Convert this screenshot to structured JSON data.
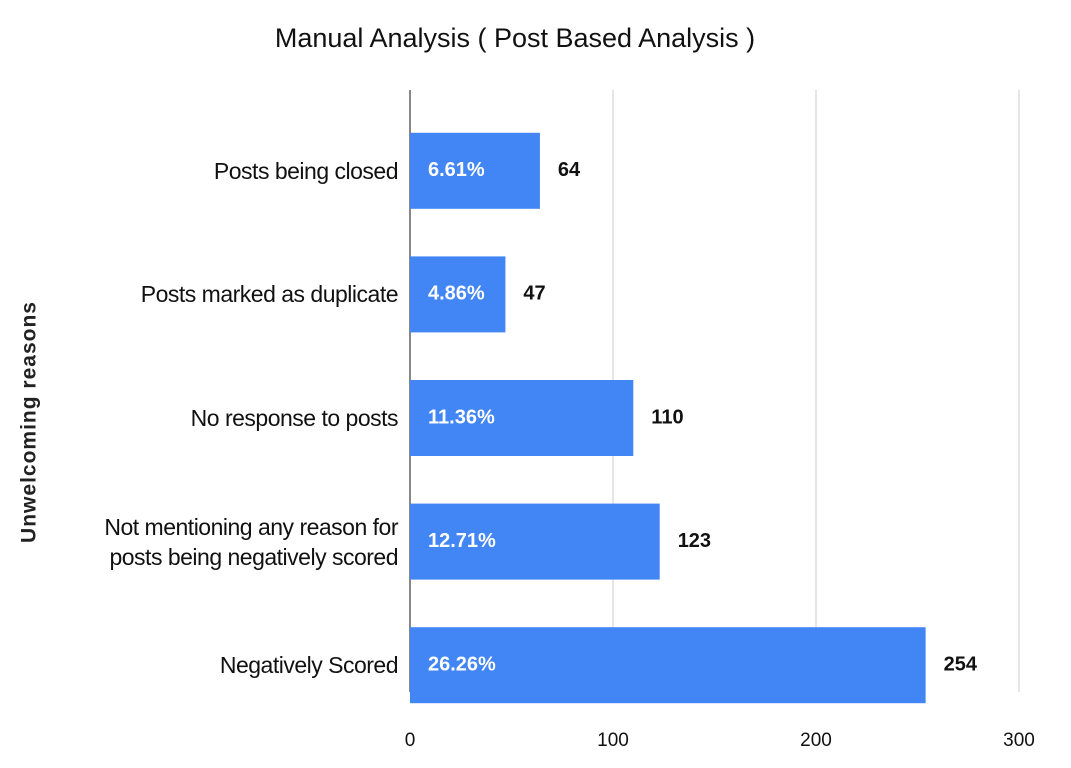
{
  "chart_data": {
    "type": "bar",
    "orientation": "horizontal",
    "title": "Manual Analysis ( Post Based Analysis )",
    "y_label": "Unwelcoming reasons",
    "categories": [
      "Posts being closed",
      "Posts marked as duplicate",
      "No response to posts",
      "Not mentioning any reason for posts being negatively scored",
      "Negatively Scored"
    ],
    "values": [
      64,
      47,
      110,
      123,
      254
    ],
    "share_values": [
      6.61,
      4.86,
      11.36,
      12.71,
      26.26
    ],
    "share_labels": [
      "6.61%",
      "4.86%",
      "11.36%",
      "12.71%",
      "26.26%"
    ],
    "color": "#4285f4",
    "xlim": [
      0,
      300
    ],
    "xticks": [
      0,
      100,
      200,
      300
    ],
    "grid": true
  }
}
